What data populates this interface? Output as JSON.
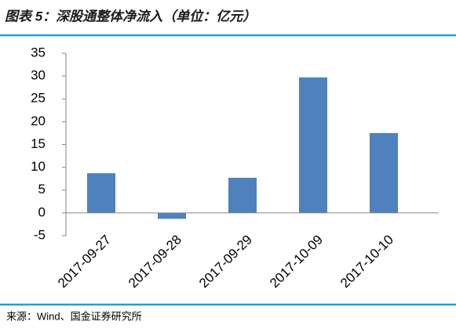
{
  "chart_data": {
    "type": "bar",
    "title": "图表 5：深股通整体净流入（单位：亿元）",
    "source": "来源：Wind、国金证券研究所",
    "categories": [
      "2017-09-27",
      "2017-09-28",
      "2017-09-29",
      "2017-10-09",
      "2017-10-10"
    ],
    "values": [
      8.7,
      -1.3,
      7.7,
      29.7,
      17.5
    ],
    "color": "#4f81bd",
    "ylim": [
      -5,
      35
    ],
    "yticks": [
      -5,
      0,
      5,
      10,
      15,
      20,
      25,
      30,
      35
    ],
    "grid": false
  }
}
